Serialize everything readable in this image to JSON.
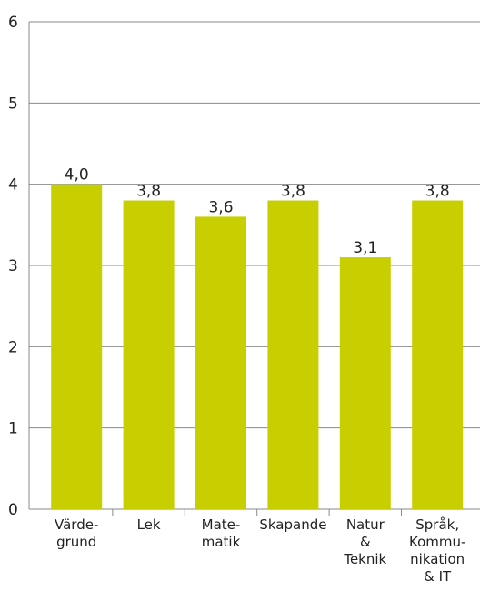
{
  "chart_data": {
    "type": "bar",
    "categories": [
      "Värde-\ngrund",
      "Lek",
      "Mate-\nmatik",
      "Skapande",
      "Natur\n&\nTeknik",
      "Språk,\nKommu-\nnikation\n& IT"
    ],
    "values": [
      4.0,
      3.8,
      3.6,
      3.8,
      3.1,
      3.8
    ],
    "value_labels": [
      "4,0",
      "3,8",
      "3,6",
      "3,8",
      "3,1",
      "3,8"
    ],
    "color": "#c8cf00",
    "ylim": [
      0,
      6
    ],
    "yticks": [
      0,
      1,
      2,
      3,
      4,
      5,
      6
    ],
    "grid": true
  }
}
